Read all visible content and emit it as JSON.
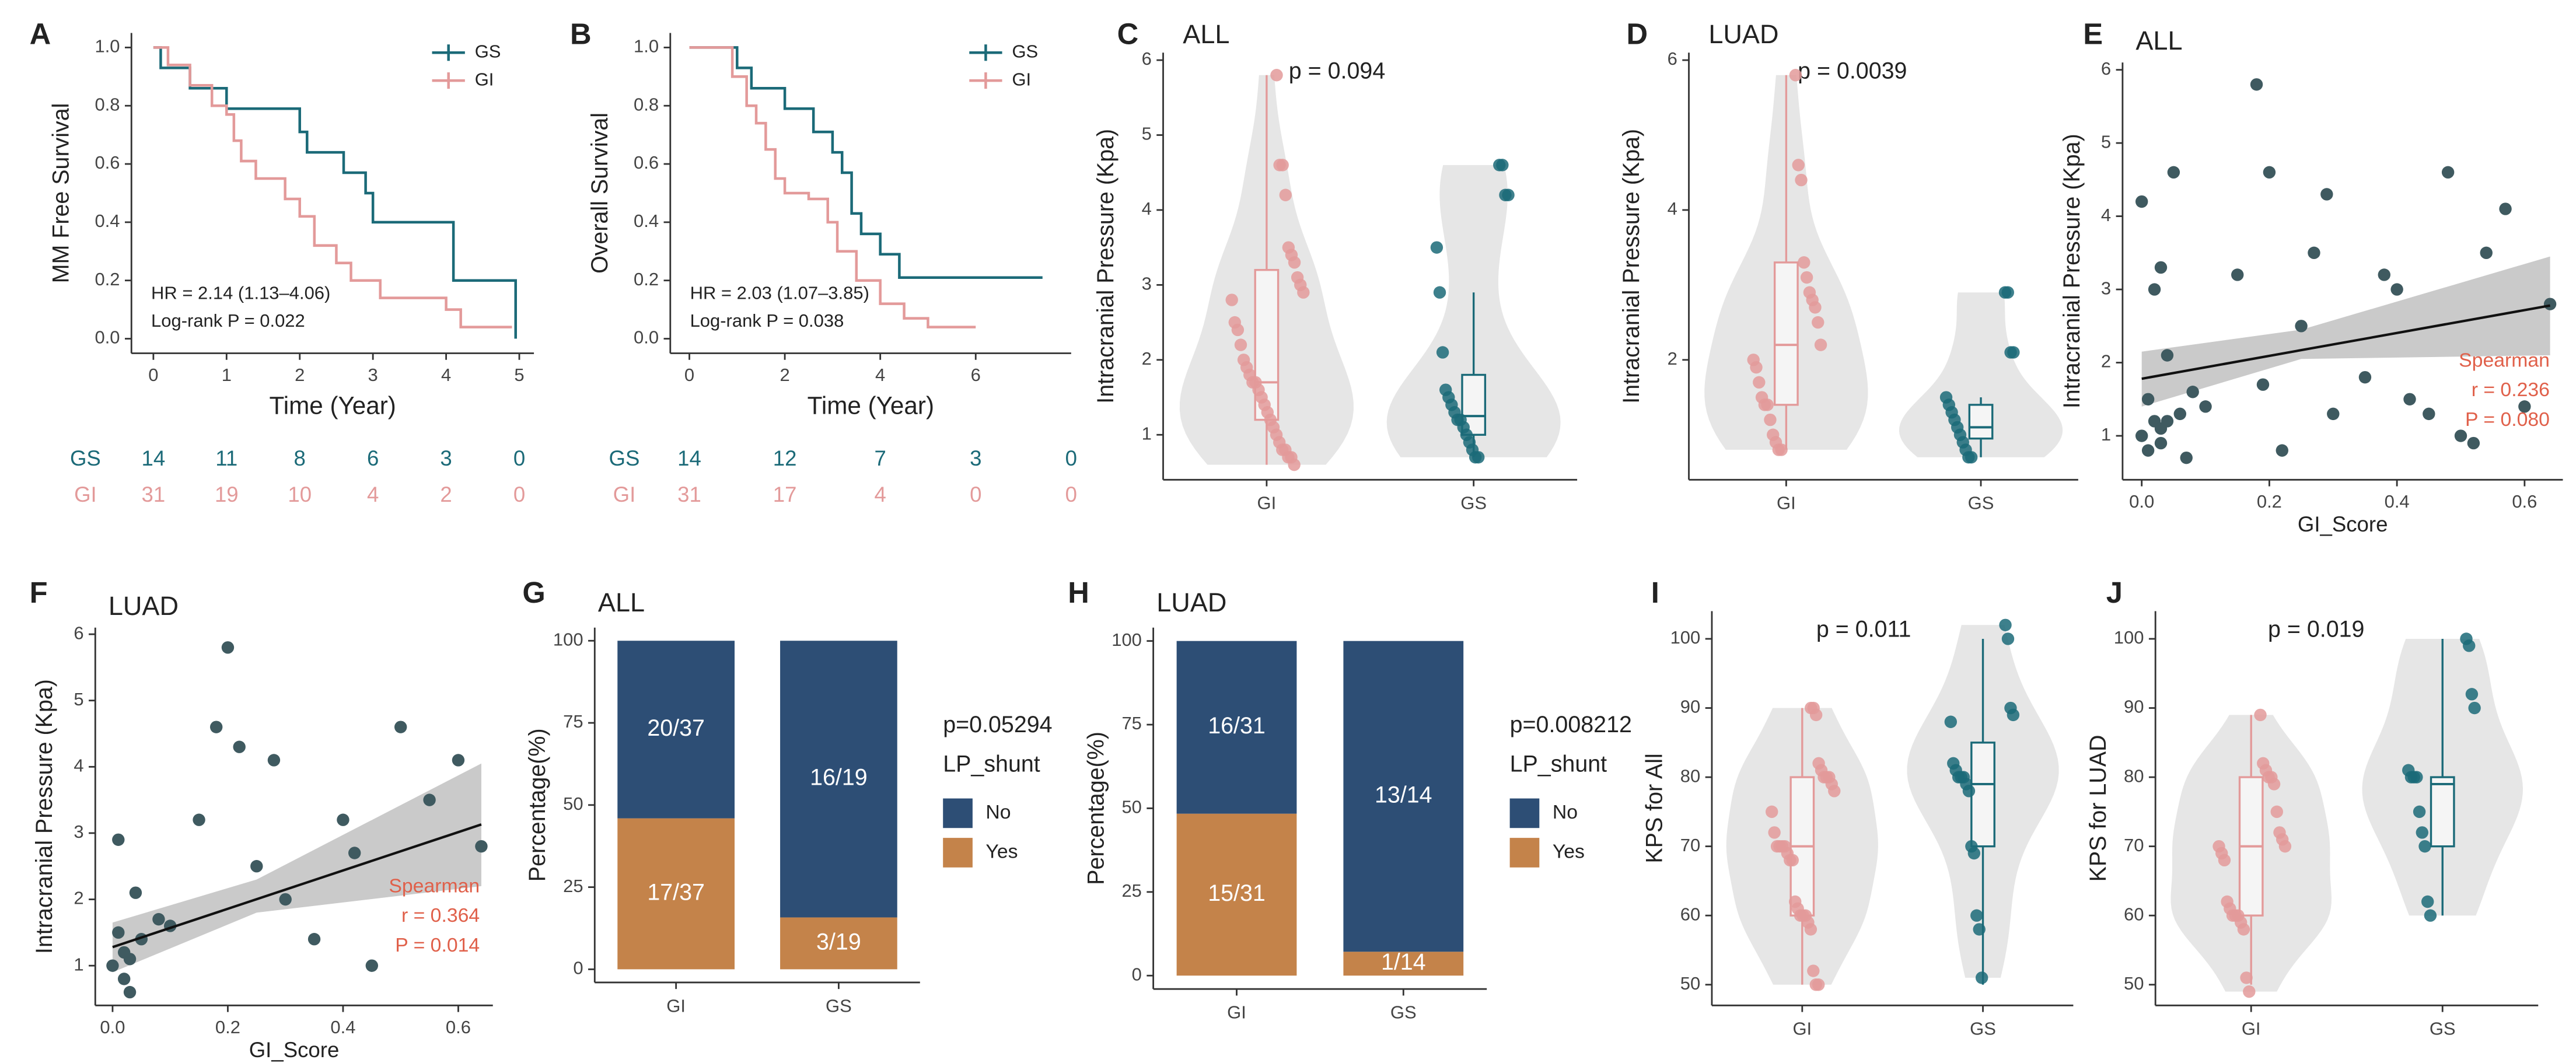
{
  "chart_data": [
    {
      "panel": "A",
      "type": "line",
      "ylabel": "MM Free Survival",
      "xlabel": "Time (Year)",
      "xlim": [
        -0.3,
        5.2
      ],
      "xticks": [
        0,
        1,
        2,
        3,
        4,
        5
      ],
      "ylim": [
        -0.05,
        1.05
      ],
      "yticks": [
        {
          "value": 0,
          "label": "0.0"
        },
        {
          "value": 0.2,
          "label": "0.2"
        },
        {
          "value": 0.4,
          "label": "0.4"
        },
        {
          "value": 0.6,
          "label": "0.6"
        },
        {
          "value": 0.8,
          "label": "0.8"
        },
        {
          "value": 1,
          "label": "1.0"
        }
      ],
      "series": [
        {
          "name": "GS",
          "color": "#1b6a78",
          "x": [
            0,
            0.1,
            0.5,
            1,
            2,
            2.1,
            2.6,
            2.9,
            3,
            4.1,
            4.9,
            4.95
          ],
          "values": [
            1,
            0.93,
            0.86,
            0.79,
            0.71,
            0.64,
            0.57,
            0.5,
            0.4,
            0.2,
            0.2,
            0
          ]
        },
        {
          "name": "GI",
          "color": "#e39a9a",
          "x": [
            0,
            0.2,
            0.5,
            0.8,
            1,
            1.1,
            1.2,
            1.4,
            1.8,
            2,
            2.2,
            2.5,
            2.7,
            3.1,
            4,
            4.2,
            4.9
          ],
          "values": [
            1,
            0.94,
            0.87,
            0.8,
            0.77,
            0.68,
            0.61,
            0.55,
            0.48,
            0.42,
            0.32,
            0.26,
            0.2,
            0.14,
            0.1,
            0.04,
            0.04
          ]
        }
      ],
      "annotations": [
        "HR = 2.14 (1.13–4.06)",
        "Log-rank P = 0.022"
      ],
      "risk_table": {
        "times": [
          0,
          1,
          2,
          3,
          4,
          5
        ],
        "rows": [
          [
            14,
            11,
            8,
            6,
            3,
            0
          ],
          [
            31,
            19,
            10,
            4,
            2,
            0
          ]
        ]
      }
    },
    {
      "panel": "B",
      "type": "line",
      "ylabel": "Overall Survival",
      "xlabel": "Time (Year)",
      "xlim": [
        -0.4,
        8
      ],
      "xticks": [
        0,
        2,
        4,
        6
      ],
      "ylim": [
        -0.05,
        1.05
      ],
      "yticks": [
        {
          "value": 0,
          "label": "0.0"
        },
        {
          "value": 0.2,
          "label": "0.2"
        },
        {
          "value": 0.4,
          "label": "0.4"
        },
        {
          "value": 0.6,
          "label": "0.6"
        },
        {
          "value": 0.8,
          "label": "0.8"
        },
        {
          "value": 1,
          "label": "1.0"
        }
      ],
      "series": [
        {
          "name": "GS",
          "color": "#1b6a78",
          "x": [
            0,
            1,
            1.3,
            2,
            2.6,
            3,
            3.2,
            3.4,
            3.6,
            4,
            4.4,
            7.4
          ],
          "values": [
            1,
            0.93,
            0.86,
            0.79,
            0.71,
            0.64,
            0.57,
            0.43,
            0.36,
            0.29,
            0.21,
            0.21
          ]
        },
        {
          "name": "GI",
          "color": "#e39a9a",
          "x": [
            0,
            0.9,
            1.2,
            1.4,
            1.6,
            1.8,
            2,
            2.5,
            2.9,
            3.1,
            3.5,
            4,
            4.5,
            5,
            6
          ],
          "values": [
            1,
            0.9,
            0.8,
            0.74,
            0.65,
            0.55,
            0.5,
            0.48,
            0.4,
            0.3,
            0.2,
            0.12,
            0.07,
            0.04,
            0.04
          ]
        }
      ],
      "annotations": [
        "HR = 2.03 (1.07–3.85)",
        "Log-rank P = 0.038"
      ],
      "risk_table": {
        "times": [
          0,
          2,
          4,
          6,
          8
        ],
        "rows": [
          [
            14,
            12,
            7,
            3,
            0
          ],
          [
            31,
            17,
            4,
            0,
            0
          ]
        ]
      }
    },
    {
      "panel": "C",
      "type": "violin",
      "title": "ALL",
      "annotation": "p = 0.094",
      "ylabel": "Intracranial Pressure (Kpa)",
      "ylim": [
        0.4,
        6.1
      ],
      "yticks": [
        1,
        2,
        3,
        4,
        5,
        6
      ],
      "groups": [
        {
          "name": "GI",
          "color": "#e39a9a",
          "values": [
            5.8,
            4.6,
            4.6,
            4.2,
            3.5,
            3.4,
            3.3,
            3.1,
            3.0,
            2.9,
            2.8,
            2.5,
            2.4,
            2.2,
            2.0,
            1.9,
            1.8,
            1.7,
            1.7,
            1.6,
            1.5,
            1.4,
            1.3,
            1.2,
            1.1,
            1.0,
            0.9,
            0.8,
            0.8,
            0.7,
            0.7,
            0.6
          ],
          "box": {
            "low": 0.6,
            "q1": 1.2,
            "median": 1.7,
            "q3": 3.2,
            "high": 5.8
          }
        },
        {
          "name": "GS",
          "color": "#1b6a78",
          "values": [
            4.6,
            4.6,
            4.2,
            4.2,
            3.5,
            2.9,
            2.1,
            1.6,
            1.5,
            1.4,
            1.3,
            1.2,
            1.2,
            1.1,
            1.0,
            0.9,
            0.8,
            0.7,
            0.7
          ],
          "box": {
            "low": 0.7,
            "q1": 1.0,
            "median": 1.25,
            "q3": 1.8,
            "high": 2.9
          }
        }
      ]
    },
    {
      "panel": "D",
      "type": "violin",
      "title": "LUAD",
      "annotation": "p = 0.0039",
      "ylabel": "Intracranial Pressure (Kpa)",
      "ylim": [
        0.4,
        6.1
      ],
      "yticks": [
        2,
        4,
        6
      ],
      "groups": [
        {
          "name": "GI",
          "color": "#e39a9a",
          "values": [
            5.8,
            4.6,
            4.4,
            3.3,
            3.1,
            2.9,
            2.8,
            2.7,
            2.5,
            2.2,
            2.0,
            1.9,
            1.7,
            1.5,
            1.4,
            1.4,
            1.2,
            1.0,
            0.9,
            0.8,
            0.8
          ],
          "box": {
            "low": 0.8,
            "q1": 1.4,
            "median": 2.2,
            "q3": 3.3,
            "high": 5.8
          }
        },
        {
          "name": "GS",
          "color": "#1b6a78",
          "values": [
            2.9,
            2.9,
            2.1,
            2.1,
            1.5,
            1.4,
            1.3,
            1.2,
            1.1,
            1.0,
            0.9,
            0.8,
            0.7,
            0.7
          ],
          "box": {
            "low": 0.7,
            "q1": 0.95,
            "median": 1.1,
            "q3": 1.4,
            "high": 1.5
          }
        }
      ]
    },
    {
      "panel": "E",
      "type": "scatter",
      "title": "ALL",
      "xlabel": "GI_Score",
      "ylabel": "Intracranial Pressure (Kpa)",
      "color": "#3f5a60",
      "xlim": [
        -0.03,
        0.66
      ],
      "xticks": [
        {
          "value": 0,
          "label": "0.0"
        },
        0.2,
        0.4,
        0.6
      ],
      "ylim": [
        0.4,
        6.1
      ],
      "yticks": [
        1,
        2,
        3,
        4,
        5,
        6
      ],
      "x": [
        0.0,
        0.0,
        0.01,
        0.01,
        0.02,
        0.02,
        0.03,
        0.03,
        0.04,
        0.05,
        0.06,
        0.07,
        0.08,
        0.1,
        0.15,
        0.18,
        0.19,
        0.2,
        0.22,
        0.25,
        0.27,
        0.29,
        0.3,
        0.35,
        0.38,
        0.4,
        0.42,
        0.45,
        0.48,
        0.5,
        0.52,
        0.54,
        0.57,
        0.6,
        0.64,
        0.03,
        0.04
      ],
      "values": [
        1.0,
        4.2,
        1.5,
        0.8,
        1.2,
        3.0,
        1.1,
        0.9,
        2.1,
        4.6,
        1.3,
        0.7,
        1.6,
        1.4,
        3.2,
        5.8,
        1.7,
        4.6,
        0.8,
        2.5,
        3.5,
        4.3,
        1.3,
        1.8,
        3.2,
        3.0,
        1.5,
        1.3,
        4.6,
        1.0,
        0.9,
        3.5,
        4.1,
        1.4,
        2.8,
        3.3,
        1.2
      ],
      "fit_x": [
        0,
        0.64
      ],
      "fit_y": [
        1.78,
        2.78
      ],
      "band": {
        "x": [
          0,
          0.25,
          0.64
        ],
        "lower": [
          1.4,
          2.05,
          2.1
        ],
        "upper": [
          2.15,
          2.45,
          3.45
        ]
      },
      "annotations": [
        "Spearman",
        "r = 0.236",
        "P = 0.080"
      ],
      "annotation_color": "#e0604a"
    },
    {
      "panel": "F",
      "type": "scatter",
      "title": "LUAD",
      "xlabel": "GI_Score",
      "ylabel": "Intracranial Pressure (Kpa)",
      "color": "#3f5a60",
      "xlim": [
        -0.03,
        0.66
      ],
      "xticks": [
        {
          "value": 0,
          "label": "0.0"
        },
        0.2,
        0.4,
        0.6
      ],
      "ylim": [
        0.4,
        6.1
      ],
      "yticks": [
        1,
        2,
        3,
        4,
        5,
        6
      ],
      "x": [
        0.0,
        0.01,
        0.01,
        0.02,
        0.02,
        0.03,
        0.04,
        0.05,
        0.08,
        0.1,
        0.15,
        0.18,
        0.2,
        0.22,
        0.25,
        0.28,
        0.3,
        0.35,
        0.4,
        0.42,
        0.45,
        0.5,
        0.55,
        0.6,
        0.64,
        0.03
      ],
      "values": [
        1.0,
        1.5,
        2.9,
        0.8,
        1.2,
        1.1,
        2.1,
        1.4,
        1.7,
        1.6,
        3.2,
        4.6,
        5.8,
        4.3,
        2.5,
        4.1,
        2.0,
        1.4,
        3.2,
        2.7,
        1.0,
        4.6,
        3.5,
        4.1,
        2.8,
        0.6
      ],
      "fit_x": [
        0,
        0.64
      ],
      "fit_y": [
        1.28,
        3.13
      ],
      "band": {
        "x": [
          0,
          0.25,
          0.64
        ],
        "lower": [
          0.9,
          1.8,
          2.2
        ],
        "upper": [
          1.65,
          2.3,
          4.05
        ]
      },
      "annotations": [
        "Spearman",
        "r = 0.364",
        "P = 0.014"
      ],
      "annotation_color": "#e0604a"
    },
    {
      "panel": "G",
      "type": "bar",
      "title": "ALL",
      "ylabel": "Percentage(%)",
      "annotation": "p=0.05294",
      "legend_title": "LP_shunt",
      "ylim": [
        -4,
        104
      ],
      "yticks": [
        0,
        25,
        50,
        75,
        100
      ],
      "categories": [
        "GI",
        "GS"
      ],
      "series": [
        {
          "name": "No",
          "color": "#2d4e75",
          "values": [
            54.05,
            84.21
          ],
          "value_labels": [
            "20/37",
            "16/19"
          ]
        },
        {
          "name": "Yes",
          "color": "#c4834a",
          "values": [
            45.95,
            15.79
          ],
          "value_labels": [
            "17/37",
            "3/19"
          ]
        }
      ]
    },
    {
      "panel": "H",
      "type": "bar",
      "title": "LUAD",
      "ylabel": "Percentage(%)",
      "annotation": "p=0.008212",
      "legend_title": "LP_shunt",
      "ylim": [
        -4,
        104
      ],
      "yticks": [
        0,
        25,
        50,
        75,
        100
      ],
      "categories": [
        "GI",
        "GS"
      ],
      "series": [
        {
          "name": "No",
          "color": "#2d4e75",
          "values": [
            51.61,
            92.86
          ],
          "value_labels": [
            "16/31",
            "13/14"
          ]
        },
        {
          "name": "Yes",
          "color": "#c4834a",
          "values": [
            48.39,
            7.14
          ],
          "value_labels": [
            "15/31",
            "1/14"
          ]
        }
      ]
    },
    {
      "panel": "I",
      "type": "violin",
      "annotation": "p = 0.011",
      "ylabel": "KPS for All",
      "ylim": [
        47,
        104
      ],
      "yticks": [
        50,
        60,
        70,
        80,
        90,
        100
      ],
      "groups": [
        {
          "name": "GI",
          "color": "#e39a9a",
          "values": [
            90,
            90,
            89,
            82,
            81,
            80,
            80,
            80,
            79,
            78,
            75,
            72,
            70,
            70,
            70,
            70,
            69,
            68,
            68,
            62,
            61,
            60,
            60,
            60,
            59,
            58,
            52,
            50,
            50
          ],
          "box": {
            "low": 50,
            "q1": 60,
            "median": 70,
            "q3": 80,
            "high": 90
          }
        },
        {
          "name": "GS",
          "color": "#1b6a78",
          "values": [
            102,
            100,
            90,
            89,
            88,
            82,
            81,
            80,
            80,
            80,
            79,
            78,
            70,
            69,
            60,
            58,
            51
          ],
          "box": {
            "low": 50,
            "q1": 70,
            "median": 79,
            "q3": 85,
            "high": 100
          }
        }
      ]
    },
    {
      "panel": "J",
      "type": "violin",
      "annotation": "p = 0.019",
      "ylabel": "KPS for LUAD",
      "ylim": [
        47,
        104
      ],
      "yticks": [
        50,
        60,
        70,
        80,
        90,
        100
      ],
      "groups": [
        {
          "name": "GI",
          "color": "#e39a9a",
          "values": [
            89,
            82,
            81,
            80,
            80,
            79,
            75,
            72,
            71,
            70,
            70,
            69,
            68,
            62,
            61,
            60,
            60,
            60,
            59,
            58,
            51,
            49
          ],
          "box": {
            "low": 50,
            "q1": 60,
            "median": 70,
            "q3": 80,
            "high": 89
          }
        },
        {
          "name": "GS",
          "color": "#1b6a78",
          "values": [
            100,
            99,
            92,
            90,
            81,
            80,
            80,
            80,
            75,
            72,
            70,
            62,
            60
          ],
          "box": {
            "low": 60,
            "q1": 70,
            "median": 79,
            "q3": 80,
            "high": 100
          }
        }
      ]
    }
  ]
}
